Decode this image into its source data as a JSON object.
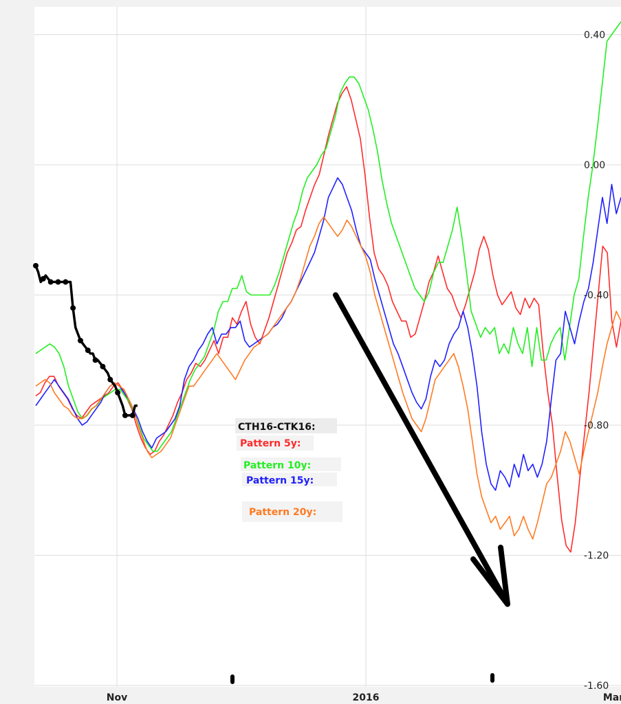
{
  "chart_data": {
    "type": "line",
    "title": "",
    "xlabel": "",
    "ylabel": "",
    "x_ticks": [
      "Nov",
      "2016",
      "Mar"
    ],
    "y_ticks": [
      "0.40",
      "0.00",
      "-0.40",
      "-0.80",
      "-1.20",
      "-1.60"
    ],
    "ylim": [
      -1.6,
      0.48
    ],
    "grid": true,
    "legend_placement": "center",
    "legend_title": "CTH16-CTK16:",
    "colors": {
      "actual": "#000000",
      "pattern5": "#ff2a2a",
      "pattern10": "#22ee22",
      "pattern15": "#1f1fff",
      "pattern20": "#ff7a22",
      "grid": "#dddddd",
      "plot_background": "#ffffff"
    },
    "actual": {
      "name": "CTH16-CTK16",
      "values": [
        -0.31,
        -0.33,
        -0.36,
        -0.35,
        -0.34,
        -0.35,
        -0.36,
        -0.36,
        -0.36,
        -0.36,
        -0.36,
        -0.36,
        -0.36,
        -0.36,
        -0.36,
        -0.44,
        -0.5,
        -0.52,
        -0.54,
        -0.55,
        -0.56,
        -0.57,
        -0.58,
        -0.58,
        -0.6,
        -0.6,
        -0.61,
        -0.62,
        -0.63,
        -0.64,
        -0.66,
        -0.67,
        -0.68,
        -0.7,
        -0.72,
        -0.74,
        -0.77,
        -0.77,
        -0.77,
        -0.77,
        -0.74,
        -0.74
      ]
    },
    "series": [
      {
        "name": "Pattern 5y",
        "key": "pattern5",
        "values": [
          -0.71,
          -0.7,
          -0.67,
          -0.65,
          -0.65,
          -0.68,
          -0.7,
          -0.72,
          -0.75,
          -0.77,
          -0.78,
          -0.76,
          -0.74,
          -0.73,
          -0.72,
          -0.71,
          -0.7,
          -0.68,
          -0.67,
          -0.69,
          -0.72,
          -0.75,
          -0.8,
          -0.84,
          -0.87,
          -0.89,
          -0.88,
          -0.85,
          -0.83,
          -0.8,
          -0.77,
          -0.73,
          -0.7,
          -0.66,
          -0.64,
          -0.61,
          -0.62,
          -0.6,
          -0.57,
          -0.54,
          -0.58,
          -0.53,
          -0.53,
          -0.47,
          -0.49,
          -0.45,
          -0.42,
          -0.49,
          -0.53,
          -0.55,
          -0.51,
          -0.47,
          -0.42,
          -0.37,
          -0.32,
          -0.27,
          -0.24,
          -0.2,
          -0.19,
          -0.14,
          -0.1,
          -0.06,
          -0.03,
          0.03,
          0.09,
          0.14,
          0.19,
          0.22,
          0.24,
          0.2,
          0.14,
          0.08,
          -0.03,
          -0.16,
          -0.27,
          -0.32,
          -0.34,
          -0.37,
          -0.42,
          -0.45,
          -0.48,
          -0.48,
          -0.53,
          -0.52,
          -0.47,
          -0.42,
          -0.36,
          -0.33,
          -0.28,
          -0.33,
          -0.38,
          -0.4,
          -0.44,
          -0.47,
          -0.43,
          -0.38,
          -0.33,
          -0.26,
          -0.22,
          -0.26,
          -0.34,
          -0.4,
          -0.43,
          -0.41,
          -0.39,
          -0.44,
          -0.46,
          -0.41,
          -0.44,
          -0.41,
          -0.43,
          -0.58,
          -0.7,
          -0.8,
          -0.95,
          -1.09,
          -1.17,
          -1.19,
          -1.1,
          -0.96,
          -0.83,
          -0.7,
          -0.55,
          -0.4,
          -0.25,
          -0.27,
          -0.48,
          -0.56,
          -0.48
        ]
      },
      {
        "name": "Pattern 10y",
        "key": "pattern10",
        "values": [
          -0.58,
          -0.57,
          -0.56,
          -0.55,
          -0.56,
          -0.58,
          -0.62,
          -0.68,
          -0.72,
          -0.76,
          -0.78,
          -0.77,
          -0.75,
          -0.74,
          -0.72,
          -0.71,
          -0.7,
          -0.69,
          -0.69,
          -0.71,
          -0.73,
          -0.76,
          -0.8,
          -0.84,
          -0.86,
          -0.88,
          -0.88,
          -0.86,
          -0.84,
          -0.82,
          -0.78,
          -0.74,
          -0.7,
          -0.66,
          -0.63,
          -0.61,
          -0.59,
          -0.55,
          -0.51,
          -0.45,
          -0.42,
          -0.42,
          -0.38,
          -0.38,
          -0.34,
          -0.39,
          -0.4,
          -0.4,
          -0.4,
          -0.4,
          -0.4,
          -0.37,
          -0.33,
          -0.28,
          -0.23,
          -0.18,
          -0.14,
          -0.08,
          -0.04,
          -0.02,
          0.0,
          0.03,
          0.05,
          0.1,
          0.15,
          0.22,
          0.25,
          0.27,
          0.27,
          0.25,
          0.21,
          0.17,
          0.11,
          0.04,
          -0.05,
          -0.12,
          -0.18,
          -0.22,
          -0.26,
          -0.3,
          -0.34,
          -0.38,
          -0.4,
          -0.42,
          -0.39,
          -0.33,
          -0.3,
          -0.3,
          -0.25,
          -0.2,
          -0.13,
          -0.22,
          -0.33,
          -0.45,
          -0.49,
          -0.53,
          -0.5,
          -0.52,
          -0.5,
          -0.58,
          -0.55,
          -0.58,
          -0.5,
          -0.55,
          -0.58,
          -0.5,
          -0.62,
          -0.5,
          -0.6,
          -0.6,
          -0.55,
          -0.52,
          -0.5,
          -0.6,
          -0.5,
          -0.4,
          -0.35,
          -0.22,
          -0.1,
          0.0,
          0.12,
          0.25,
          0.38,
          0.4,
          0.42,
          0.44
        ]
      },
      {
        "name": "Pattern 15y",
        "key": "pattern15",
        "values": [
          -0.74,
          -0.72,
          -0.7,
          -0.68,
          -0.66,
          -0.68,
          -0.7,
          -0.72,
          -0.75,
          -0.78,
          -0.8,
          -0.79,
          -0.77,
          -0.75,
          -0.73,
          -0.7,
          -0.68,
          -0.67,
          -0.68,
          -0.7,
          -0.72,
          -0.75,
          -0.78,
          -0.82,
          -0.85,
          -0.87,
          -0.84,
          -0.83,
          -0.82,
          -0.8,
          -0.78,
          -0.74,
          -0.66,
          -0.62,
          -0.6,
          -0.57,
          -0.55,
          -0.52,
          -0.5,
          -0.55,
          -0.52,
          -0.52,
          -0.5,
          -0.5,
          -0.48,
          -0.54,
          -0.56,
          -0.55,
          -0.54,
          -0.53,
          -0.52,
          -0.5,
          -0.49,
          -0.47,
          -0.44,
          -0.42,
          -0.39,
          -0.36,
          -0.33,
          -0.3,
          -0.27,
          -0.22,
          -0.17,
          -0.1,
          -0.07,
          -0.04,
          -0.06,
          -0.1,
          -0.14,
          -0.2,
          -0.25,
          -0.27,
          -0.29,
          -0.35,
          -0.4,
          -0.45,
          -0.5,
          -0.55,
          -0.58,
          -0.62,
          -0.66,
          -0.7,
          -0.73,
          -0.75,
          -0.72,
          -0.65,
          -0.6,
          -0.62,
          -0.6,
          -0.55,
          -0.52,
          -0.5,
          -0.45,
          -0.5,
          -0.58,
          -0.68,
          -0.82,
          -0.92,
          -0.98,
          -1.0,
          -0.94,
          -0.96,
          -0.99,
          -0.92,
          -0.96,
          -0.89,
          -0.94,
          -0.92,
          -0.96,
          -0.92,
          -0.85,
          -0.72,
          -0.6,
          -0.58,
          -0.45,
          -0.5,
          -0.55,
          -0.48,
          -0.42,
          -0.38,
          -0.3,
          -0.2,
          -0.1,
          -0.18,
          -0.06,
          -0.15,
          -0.1
        ]
      },
      {
        "name": "Pattern 20y",
        "key": "pattern20",
        "values": [
          -0.68,
          -0.67,
          -0.66,
          -0.67,
          -0.7,
          -0.72,
          -0.74,
          -0.75,
          -0.77,
          -0.78,
          -0.78,
          -0.77,
          -0.75,
          -0.74,
          -0.72,
          -0.7,
          -0.68,
          -0.67,
          -0.68,
          -0.69,
          -0.72,
          -0.75,
          -0.8,
          -0.84,
          -0.88,
          -0.9,
          -0.89,
          -0.88,
          -0.86,
          -0.84,
          -0.8,
          -0.76,
          -0.72,
          -0.68,
          -0.68,
          -0.66,
          -0.64,
          -0.62,
          -0.6,
          -0.58,
          -0.6,
          -0.62,
          -0.64,
          -0.66,
          -0.63,
          -0.6,
          -0.58,
          -0.56,
          -0.55,
          -0.53,
          -0.52,
          -0.5,
          -0.48,
          -0.46,
          -0.44,
          -0.42,
          -0.39,
          -0.35,
          -0.3,
          -0.25,
          -0.22,
          -0.18,
          -0.16,
          -0.18,
          -0.2,
          -0.22,
          -0.2,
          -0.17,
          -0.19,
          -0.22,
          -0.25,
          -0.28,
          -0.33,
          -0.4,
          -0.45,
          -0.5,
          -0.55,
          -0.6,
          -0.65,
          -0.7,
          -0.74,
          -0.78,
          -0.8,
          -0.82,
          -0.78,
          -0.72,
          -0.66,
          -0.64,
          -0.62,
          -0.6,
          -0.58,
          -0.62,
          -0.68,
          -0.75,
          -0.85,
          -0.95,
          -1.02,
          -1.06,
          -1.1,
          -1.08,
          -1.12,
          -1.1,
          -1.08,
          -1.14,
          -1.12,
          -1.08,
          -1.12,
          -1.15,
          -1.1,
          -1.04,
          -0.98,
          -0.96,
          -0.92,
          -0.88,
          -0.82,
          -0.85,
          -0.9,
          -0.95,
          -0.88,
          -0.82,
          -0.76,
          -0.7,
          -0.62,
          -0.55,
          -0.5,
          -0.45,
          -0.48
        ]
      }
    ],
    "annotations": [
      {
        "type": "arrow",
        "description": "projected decline",
        "from_value": -0.4,
        "to_value": -1.35
      }
    ]
  }
}
